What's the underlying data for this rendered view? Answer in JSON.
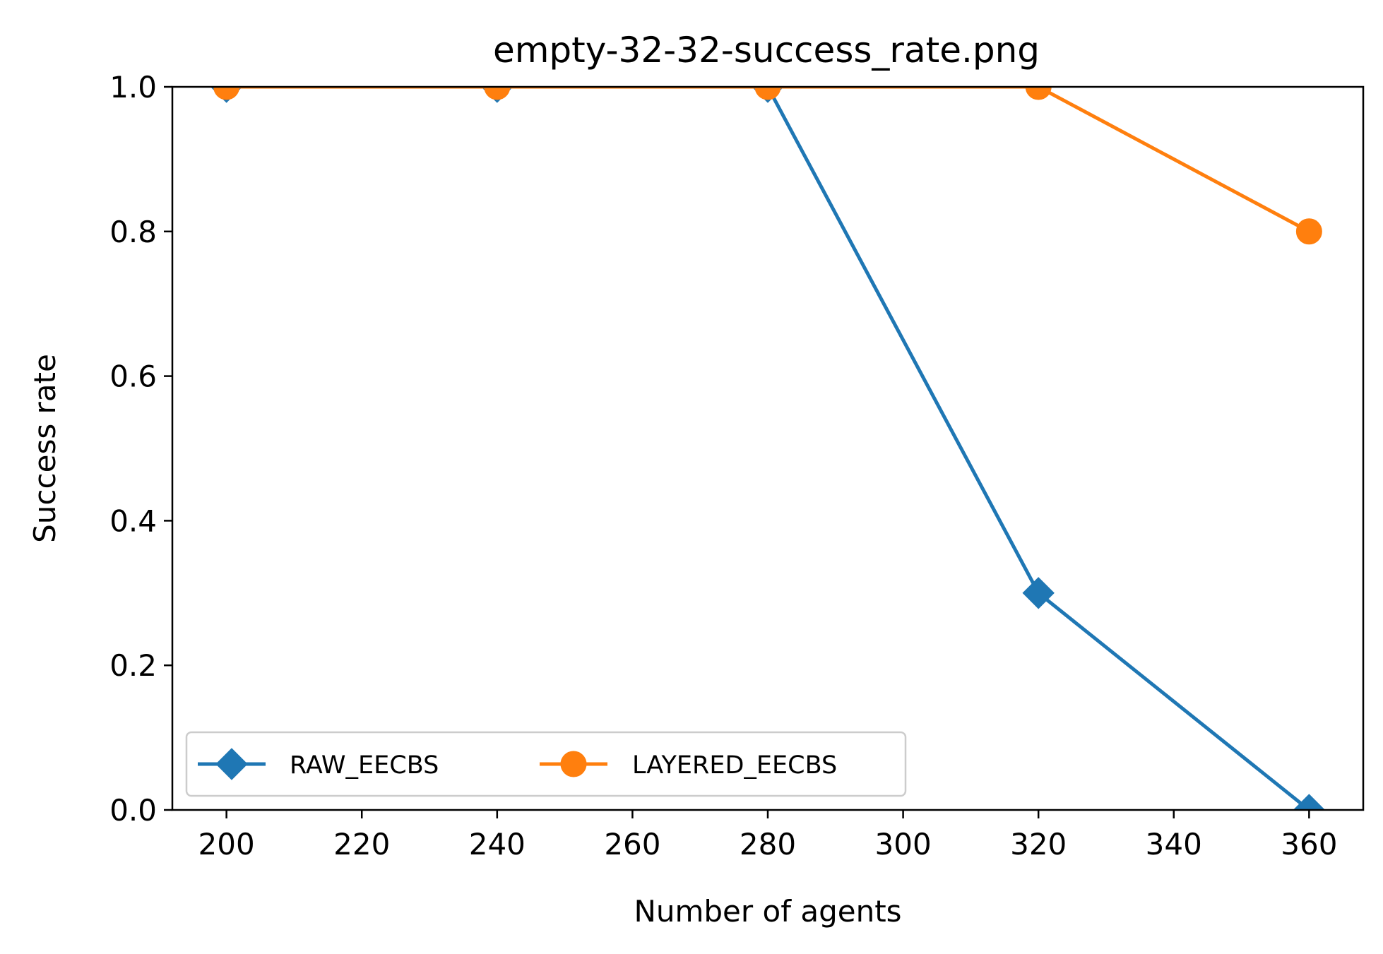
{
  "chart_data": {
    "type": "line",
    "title": "empty-32-32-success_rate.png",
    "xlabel": "Number of agents",
    "ylabel": "Success rate",
    "xlim": [
      192,
      368
    ],
    "ylim": [
      0.0,
      1.0
    ],
    "xticks": [
      200,
      220,
      240,
      260,
      280,
      300,
      320,
      340,
      360
    ],
    "xtick_labels": [
      "200",
      "220",
      "240",
      "260",
      "280",
      "300",
      "320",
      "340",
      "360"
    ],
    "yticks": [
      0.0,
      0.2,
      0.4,
      0.6,
      0.8,
      1.0
    ],
    "ytick_labels": [
      "0.0",
      "0.2",
      "0.4",
      "0.6",
      "0.8",
      "1.0"
    ],
    "grid": false,
    "legend": {
      "placement": "lower-left",
      "columns": 2
    },
    "series": [
      {
        "name": "RAW_EECBS",
        "color": "#1f77b4",
        "marker": "diamond",
        "x": [
          200,
          240,
          280,
          320,
          360
        ],
        "y": [
          1.0,
          1.0,
          1.0,
          0.3,
          0.0
        ]
      },
      {
        "name": "LAYERED_EECBS",
        "color": "#ff7f0e",
        "marker": "circle",
        "x": [
          200,
          240,
          280,
          320,
          360
        ],
        "y": [
          1.0,
          1.0,
          1.0,
          1.0,
          0.8
        ]
      }
    ]
  }
}
